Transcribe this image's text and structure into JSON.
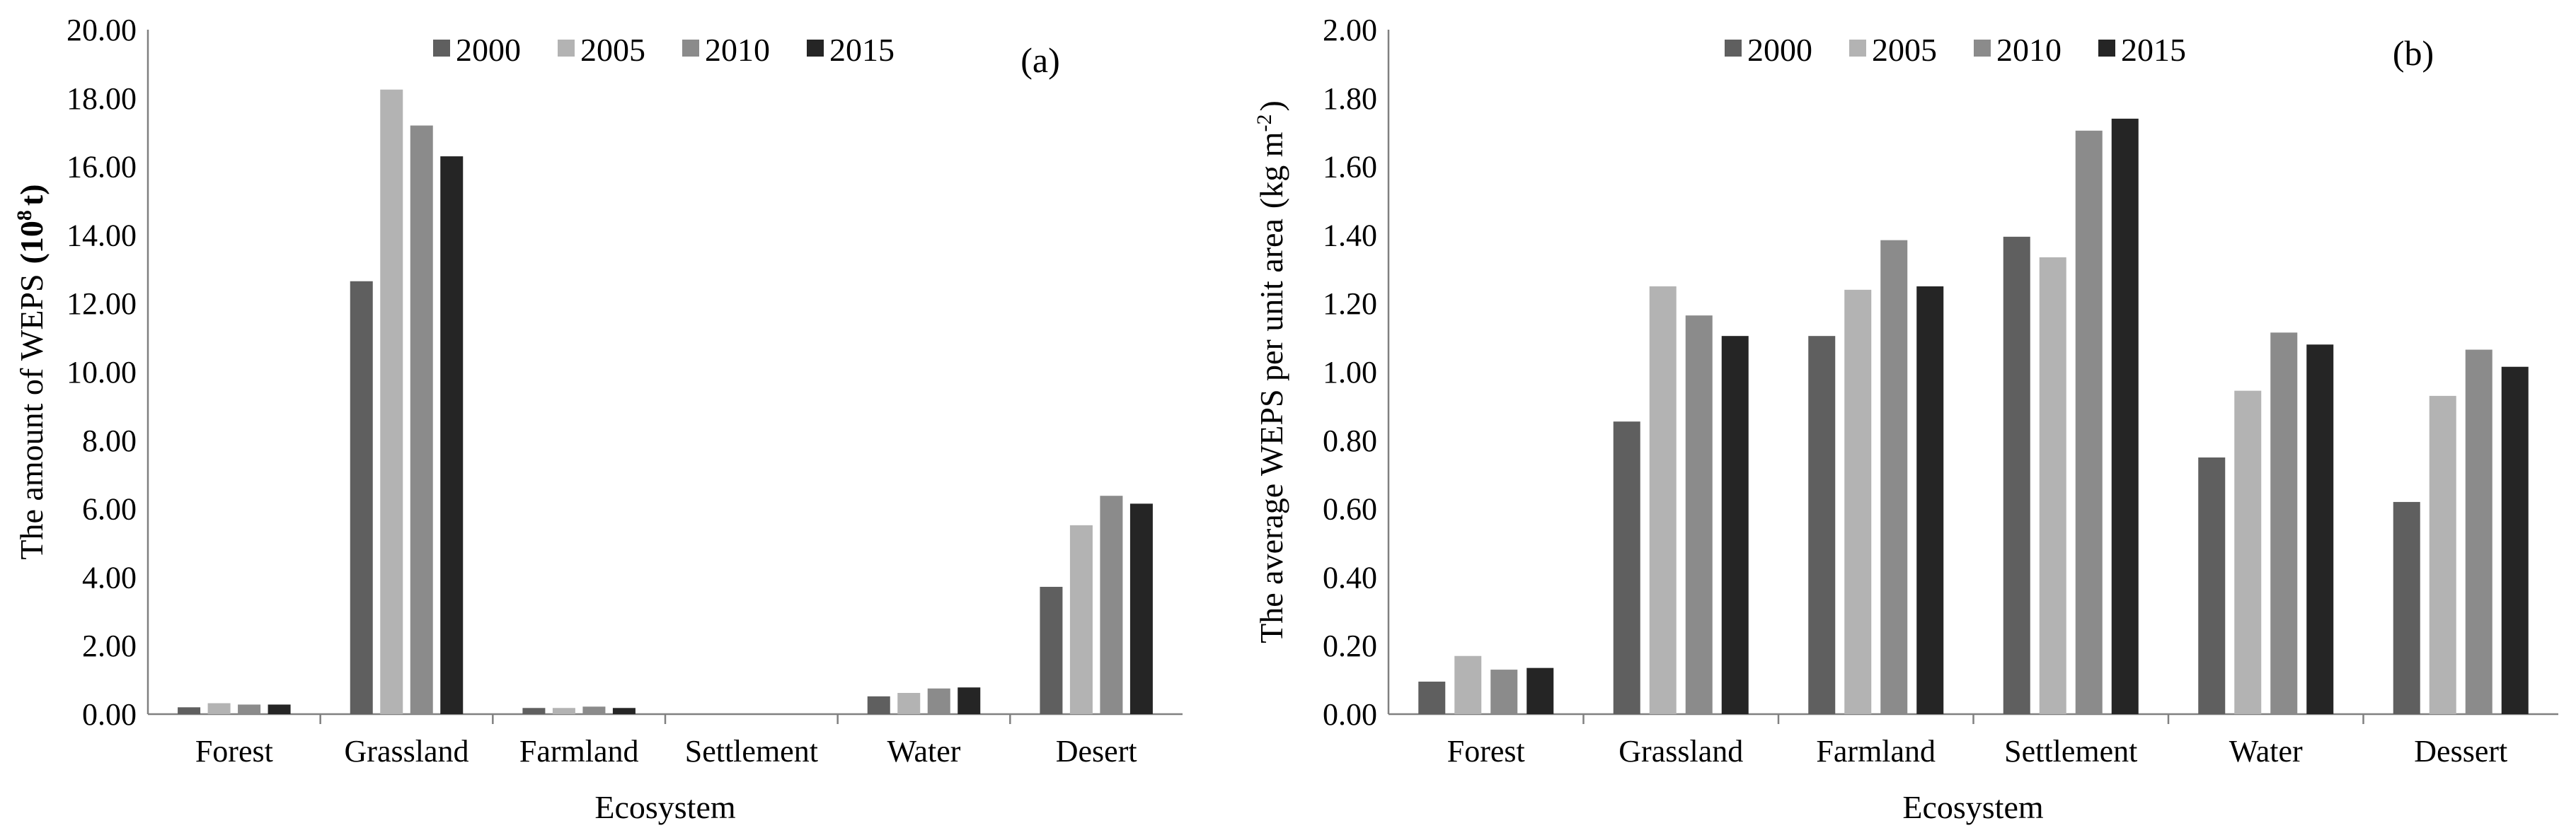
{
  "series_colors": [
    "#5f5f5f",
    "#b3b3b3",
    "#8b8b8b",
    "#252525"
  ],
  "chart_data": [
    {
      "type": "bar",
      "panel_label": "(a)",
      "xlabel": "Ecosystem",
      "ylabel_main": "The amount of WEPS",
      "ylabel_unit_open": "(10",
      "ylabel_unit_sup": "8",
      "ylabel_unit_close": "t)",
      "ylim": [
        0,
        20
      ],
      "yticks": [
        "0.00",
        "2.00",
        "4.00",
        "6.00",
        "8.00",
        "10.00",
        "12.00",
        "14.00",
        "16.00",
        "18.00",
        "20.00"
      ],
      "categories": [
        "Forest",
        "Grassland",
        "Farmland",
        "Settlement",
        "Water",
        "Desert"
      ],
      "legend_position": "top-center",
      "series": [
        {
          "name": "2000",
          "values": [
            0.2,
            12.65,
            0.18,
            0.0,
            0.52,
            3.72
          ]
        },
        {
          "name": "2005",
          "values": [
            0.32,
            18.25,
            0.18,
            0.0,
            0.62,
            5.52
          ]
        },
        {
          "name": "2010",
          "values": [
            0.28,
            17.2,
            0.22,
            0.0,
            0.75,
            6.38
          ]
        },
        {
          "name": "2015",
          "values": [
            0.28,
            16.3,
            0.18,
            0.0,
            0.78,
            6.15
          ]
        }
      ]
    },
    {
      "type": "bar",
      "panel_label": "(b)",
      "xlabel": "Ecosystem",
      "ylabel_main": "The average  WEPS per unit area",
      "ylabel_unit_open": "(kg m",
      "ylabel_unit_sup": "-2",
      "ylabel_unit_close": ")",
      "ylim": [
        0,
        2
      ],
      "yticks": [
        "0.00",
        "0.20",
        "0.40",
        "0.60",
        "0.80",
        "1.00",
        "1.20",
        "1.40",
        "1.60",
        "1.80",
        "2.00"
      ],
      "categories": [
        "Forest",
        "Grassland",
        "Farmland",
        "Settlement",
        "Water",
        "Dessert"
      ],
      "legend_position": "top-center",
      "series": [
        {
          "name": "2000",
          "values": [
            0.095,
            0.855,
            1.105,
            1.395,
            0.75,
            0.62
          ]
        },
        {
          "name": "2005",
          "values": [
            0.17,
            1.25,
            1.24,
            1.335,
            0.945,
            0.93
          ]
        },
        {
          "name": "2010",
          "values": [
            0.13,
            1.165,
            1.385,
            1.705,
            1.115,
            1.065
          ]
        },
        {
          "name": "2015",
          "values": [
            0.135,
            1.105,
            1.25,
            1.74,
            1.08,
            1.015
          ]
        }
      ]
    }
  ]
}
